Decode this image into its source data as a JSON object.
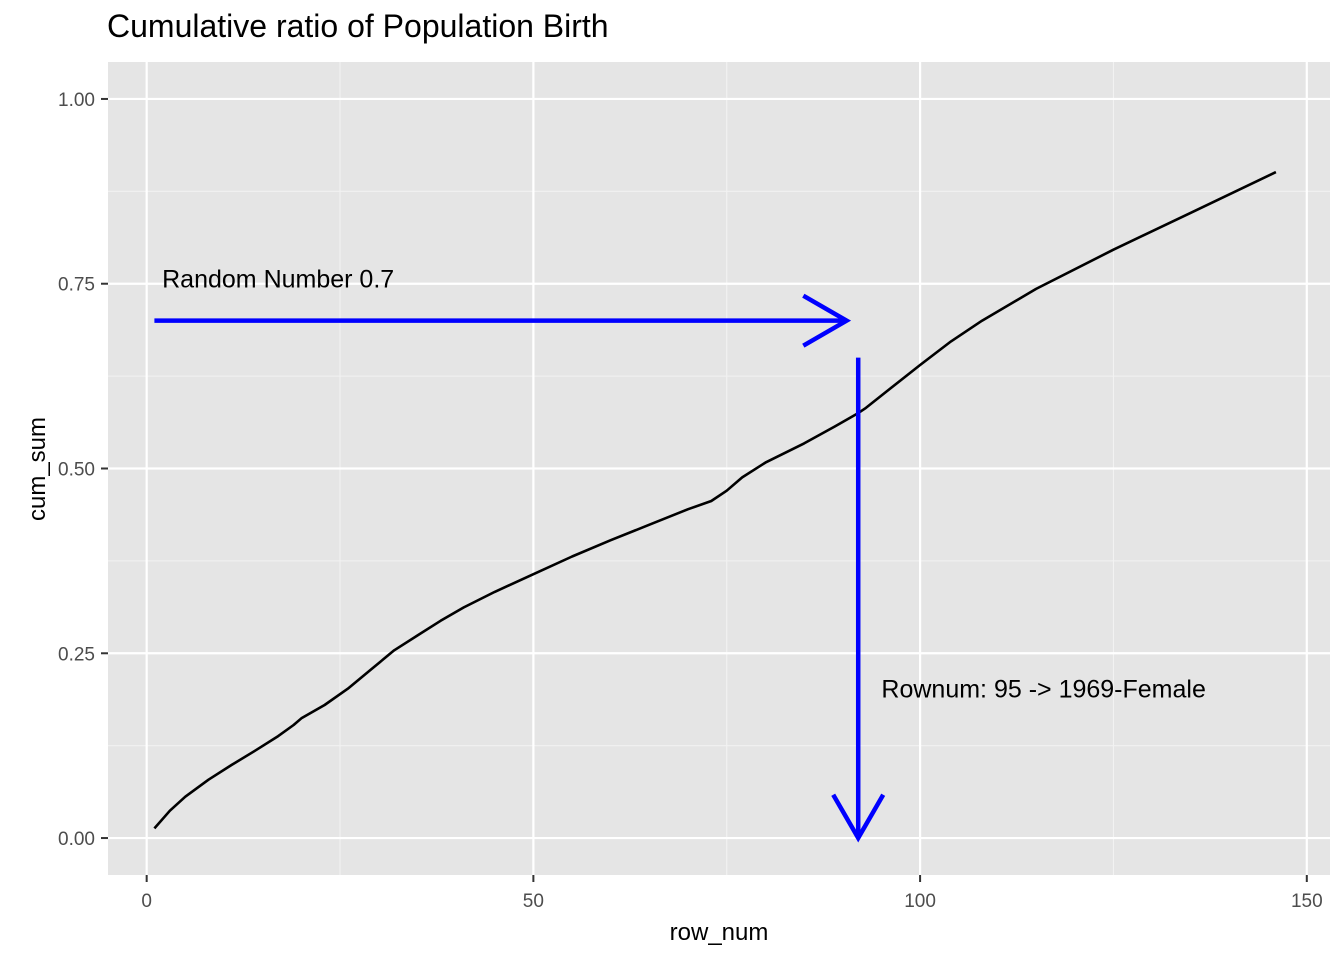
{
  "chart_data": {
    "type": "line",
    "title": "Cumulative ratio of Population Birth",
    "xlabel": "row_num",
    "ylabel": "cum_sum",
    "xlim": [
      -5,
      153
    ],
    "ylim": [
      -0.05,
      1.05
    ],
    "x_ticks": [
      0,
      50,
      100,
      150
    ],
    "x_tick_labels": [
      "0",
      "50",
      "100",
      "150"
    ],
    "y_ticks": [
      0,
      0.25,
      0.5,
      0.75,
      1
    ],
    "y_tick_labels": [
      "0.00",
      "0.25",
      "0.50",
      "0.75",
      "1.00"
    ],
    "grid": true,
    "background": "#e5e5e5",
    "series": [
      {
        "color": "#000000",
        "x": [
          1,
          3,
          5,
          8,
          11,
          14,
          17,
          19,
          20,
          23,
          26,
          29,
          32,
          35,
          38,
          41,
          45,
          50,
          55,
          60,
          65,
          70,
          73,
          75,
          77,
          80,
          85,
          89,
          92,
          93,
          96,
          100,
          104,
          108,
          115,
          125,
          135,
          146
        ],
        "y": [
          0.013,
          0.037,
          0.056,
          0.079,
          0.099,
          0.118,
          0.138,
          0.153,
          0.162,
          0.18,
          0.202,
          0.228,
          0.254,
          0.274,
          0.294,
          0.312,
          0.333,
          0.357,
          0.381,
          0.403,
          0.424,
          0.445,
          0.456,
          0.47,
          0.488,
          0.508,
          0.534,
          0.557,
          0.575,
          0.582,
          0.607,
          0.64,
          0.672,
          0.7,
          0.743,
          0.796,
          0.846,
          0.901
        ]
      }
    ],
    "annotations": [
      {
        "type": "text",
        "text": "Random Number 0.7",
        "x": 2,
        "y": 0.745,
        "align": "start"
      },
      {
        "type": "text",
        "text": "Rownum: 95 -> 1969-Female",
        "x": 95,
        "y": 0.19,
        "align": "start"
      },
      {
        "type": "arrow",
        "color": "#0000ff",
        "from": [
          1,
          0.7
        ],
        "to": [
          90.5,
          0.7
        ]
      },
      {
        "type": "arrow",
        "color": "#0000ff",
        "from": [
          92,
          0.65
        ],
        "to": [
          92,
          0
        ]
      }
    ]
  }
}
